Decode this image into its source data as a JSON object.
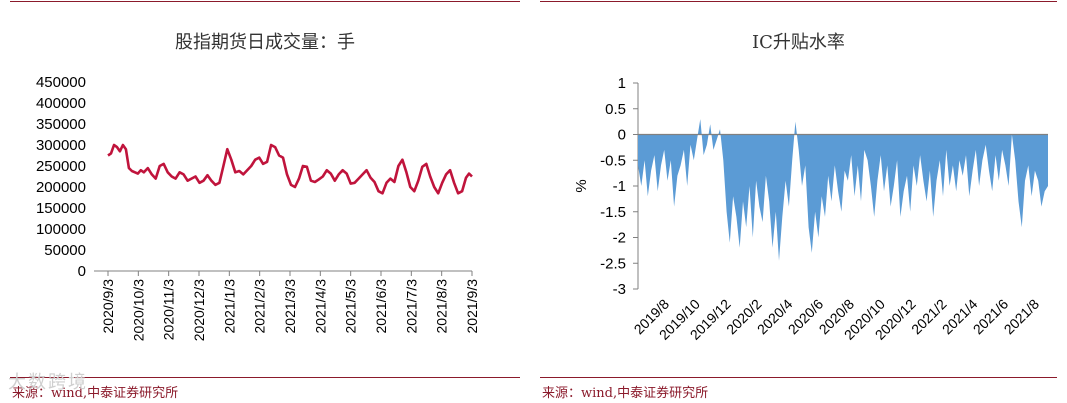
{
  "left_panel": {
    "source": "来源：wind,中泰证券研究所"
  },
  "right_panel": {
    "source": "来源：wind,中泰证券研究所"
  },
  "watermark": "大数跨境",
  "colors": {
    "rule": "#8B1A2B",
    "line": "#C0143C",
    "area": "#5B9BD5",
    "source": "#8B1A2B"
  },
  "chart_data": [
    {
      "type": "line",
      "title": "股指期货日成交量：手",
      "xlabel": "",
      "ylabel": "",
      "ylim": [
        0,
        450000
      ],
      "yticks": [
        0,
        50000,
        100000,
        150000,
        200000,
        250000,
        300000,
        350000,
        400000,
        450000
      ],
      "xticks": [
        "2020/9/3",
        "2020/10/3",
        "2020/11/3",
        "2020/12/3",
        "2021/1/3",
        "2021/2/3",
        "2021/3/3",
        "2021/4/3",
        "2021/5/3",
        "2021/6/3",
        "2021/7/3",
        "2021/8/3",
        "2021/9/3"
      ],
      "x_range_days": [
        0,
        366
      ],
      "series": [
        {
          "x_days": [
            0,
            3,
            6,
            9,
            12,
            15,
            18,
            21,
            24,
            27,
            30,
            33,
            36,
            40,
            44,
            48,
            52,
            56,
            60,
            64,
            68,
            72,
            76,
            80,
            84,
            88,
            92,
            96,
            100,
            104,
            108,
            112,
            116,
            120,
            124,
            128,
            132,
            136,
            140,
            144,
            148,
            152,
            156,
            160,
            164,
            168,
            172,
            176,
            180,
            184,
            188,
            192,
            196,
            200,
            204,
            208,
            212,
            216,
            220,
            224,
            228,
            232,
            236,
            240,
            244,
            248,
            252,
            256,
            260,
            264,
            268,
            272,
            276,
            280,
            284,
            288,
            292,
            296,
            300,
            304,
            308,
            312,
            316,
            320,
            324,
            328,
            332,
            336,
            340,
            344,
            348,
            352,
            356,
            360,
            363,
            366
          ],
          "values": [
            275000,
            280000,
            300000,
            295000,
            285000,
            300000,
            290000,
            245000,
            238000,
            235000,
            232000,
            240000,
            235000,
            245000,
            230000,
            220000,
            250000,
            255000,
            235000,
            225000,
            220000,
            235000,
            230000,
            215000,
            220000,
            225000,
            210000,
            215000,
            228000,
            215000,
            205000,
            210000,
            250000,
            290000,
            265000,
            235000,
            238000,
            230000,
            240000,
            250000,
            265000,
            270000,
            255000,
            260000,
            300000,
            295000,
            275000,
            270000,
            230000,
            205000,
            200000,
            220000,
            250000,
            248000,
            215000,
            212000,
            218000,
            225000,
            240000,
            232000,
            215000,
            230000,
            240000,
            232000,
            208000,
            210000,
            220000,
            230000,
            240000,
            222000,
            212000,
            190000,
            185000,
            210000,
            220000,
            212000,
            250000,
            265000,
            235000,
            200000,
            190000,
            215000,
            248000,
            255000,
            225000,
            200000,
            185000,
            210000,
            230000,
            240000,
            210000,
            185000,
            190000,
            222000,
            232000,
            225000
          ]
        }
      ]
    },
    {
      "type": "area",
      "title": "IC升贴水率",
      "xlabel": "",
      "ylabel": "%",
      "ylim": [
        -3,
        1
      ],
      "yticks": [
        1,
        0.5,
        0,
        -0.5,
        -1,
        -1.5,
        -2,
        -2.5,
        -3
      ],
      "xticks": [
        "2019/8",
        "2019/10",
        "2019/12",
        "2020/2",
        "2020/4",
        "2020/6",
        "2020/8",
        "2020/10",
        "2020/12",
        "2021/2",
        "2021/4",
        "2021/6",
        "2021/8"
      ],
      "x_range_months": [
        0,
        25
      ],
      "series": [
        {
          "x_months": [
            0,
            0.2,
            0.4,
            0.6,
            0.8,
            1,
            1.2,
            1.4,
            1.6,
            1.8,
            2,
            2.2,
            2.4,
            2.6,
            2.8,
            3,
            3.2,
            3.4,
            3.6,
            3.8,
            4,
            4.2,
            4.4,
            4.6,
            4.8,
            5,
            5.2,
            5.4,
            5.6,
            5.8,
            6,
            6.2,
            6.4,
            6.6,
            6.8,
            7,
            7.2,
            7.4,
            7.6,
            7.8,
            8,
            8.2,
            8.4,
            8.6,
            8.8,
            9,
            9.2,
            9.4,
            9.6,
            9.8,
            10,
            10.2,
            10.4,
            10.6,
            10.8,
            11,
            11.2,
            11.4,
            11.6,
            11.8,
            12,
            12.2,
            12.4,
            12.6,
            12.8,
            13,
            13.2,
            13.4,
            13.6,
            13.8,
            14,
            14.2,
            14.4,
            14.6,
            14.8,
            15,
            15.2,
            15.4,
            15.6,
            15.8,
            16,
            16.2,
            16.4,
            16.6,
            16.8,
            17,
            17.2,
            17.4,
            17.6,
            17.8,
            18,
            18.2,
            18.4,
            18.6,
            18.8,
            19,
            19.2,
            19.4,
            19.6,
            19.8,
            20,
            20.2,
            20.4,
            20.6,
            20.8,
            21,
            21.2,
            21.4,
            21.6,
            21.8,
            22,
            22.2,
            22.4,
            22.6,
            22.8,
            23,
            23.2,
            23.4,
            23.6,
            23.8,
            24,
            24.2,
            24.4,
            24.6,
            24.8,
            25
          ],
          "values": [
            -0.6,
            -1.0,
            -0.5,
            -1.2,
            -0.7,
            -0.4,
            -1.1,
            -0.6,
            -0.3,
            -0.9,
            -0.5,
            -1.4,
            -0.8,
            -0.6,
            -0.3,
            -1.0,
            -0.2,
            -0.5,
            -0.1,
            0.3,
            -0.4,
            -0.2,
            0.2,
            -0.3,
            -0.1,
            0.1,
            -0.5,
            -1.5,
            -2.1,
            -1.2,
            -1.6,
            -2.2,
            -1.3,
            -1.8,
            -1.0,
            -2.0,
            -0.9,
            -1.4,
            -1.7,
            -0.8,
            -1.3,
            -2.2,
            -1.5,
            -2.45,
            -1.6,
            -0.9,
            -1.4,
            -0.5,
            0.25,
            -0.3,
            -1.0,
            -0.6,
            -1.8,
            -2.3,
            -1.5,
            -2.0,
            -1.2,
            -1.6,
            -0.8,
            -1.3,
            -0.6,
            -1.1,
            -1.5,
            -0.7,
            -0.9,
            -0.4,
            -1.2,
            -0.6,
            -1.3,
            -0.3,
            -0.5,
            -1.0,
            -1.6,
            -0.9,
            -0.4,
            -1.1,
            -0.6,
            -1.4,
            -1.0,
            -0.5,
            -1.6,
            -1.1,
            -0.8,
            -1.5,
            -0.6,
            -1.0,
            -0.4,
            -0.9,
            -1.3,
            -0.7,
            -1.6,
            -0.9,
            -0.5,
            -1.2,
            -0.3,
            -1.0,
            -0.6,
            -1.1,
            -0.5,
            -0.8,
            -0.4,
            -1.2,
            -0.7,
            -0.3,
            -1.0,
            -0.5,
            -0.2,
            -0.7,
            -1.1,
            -0.4,
            -0.9,
            -0.3,
            -0.6,
            -1.0,
            0.0,
            -0.5,
            -1.3,
            -1.8,
            -0.9,
            -0.6,
            -1.2,
            -0.7,
            -0.9,
            -1.4,
            -1.1,
            -1.0
          ]
        }
      ]
    }
  ]
}
